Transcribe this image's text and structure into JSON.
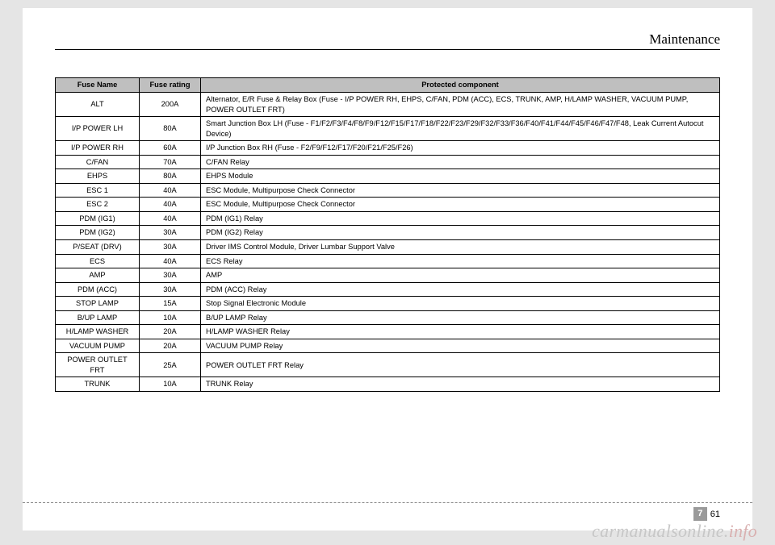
{
  "header": {
    "title": "Maintenance"
  },
  "table": {
    "columns": [
      "Fuse Name",
      "Fuse rating",
      "Protected component"
    ],
    "rows": [
      {
        "h": "tall",
        "c": [
          "ALT",
          "200A",
          "Alternator, E/R Fuse & Relay Box (Fuse - I/P POWER RH, EHPS, C/FAN, PDM (ACC), ECS, TRUNK, AMP, H/LAMP WASHER, VACUUM PUMP, POWER OUTLET FRT)"
        ]
      },
      {
        "h": "tall",
        "c": [
          "I/P POWER LH",
          "80A",
          "Smart Junction Box LH (Fuse - F1/F2/F3/F4/F8/F9/F12/F15/F17/F18/F22/F23/F29/F32/F33/F36/F40/F41/F44/F45/F46/F47/F48, Leak Current Autocut Device)"
        ]
      },
      {
        "h": "short",
        "c": [
          "I/P POWER RH",
          "60A",
          "I/P Junction Box RH (Fuse - F2/F9/F12/F17/F20/F21/F25/F26)"
        ]
      },
      {
        "h": "short",
        "c": [
          "C/FAN",
          "70A",
          "C/FAN Relay"
        ]
      },
      {
        "h": "short",
        "c": [
          "EHPS",
          "80A",
          "EHPS Module"
        ]
      },
      {
        "h": "short",
        "c": [
          "ESC 1",
          "40A",
          "ESC Module, Multipurpose Check Connector"
        ]
      },
      {
        "h": "short",
        "c": [
          "ESC 2",
          "40A",
          "ESC Module, Multipurpose Check Connector"
        ]
      },
      {
        "h": "short",
        "c": [
          "PDM (IG1)",
          "40A",
          "PDM (IG1) Relay"
        ]
      },
      {
        "h": "short",
        "c": [
          "PDM (IG2)",
          "30A",
          "PDM (IG2) Relay"
        ]
      },
      {
        "h": "short",
        "c": [
          "P/SEAT (DRV)",
          "30A",
          "Driver IMS Control Module, Driver Lumbar Support Valve"
        ]
      },
      {
        "h": "short",
        "c": [
          "ECS",
          "40A",
          "ECS Relay"
        ]
      },
      {
        "h": "short",
        "c": [
          "AMP",
          "30A",
          "AMP"
        ]
      },
      {
        "h": "short",
        "c": [
          "PDM (ACC)",
          "30A",
          "PDM (ACC) Relay"
        ]
      },
      {
        "h": "short",
        "c": [
          "STOP LAMP",
          "15A",
          "Stop Signal Electronic Module"
        ]
      },
      {
        "h": "short",
        "c": [
          "B/UP LAMP",
          "10A",
          "B/UP LAMP Relay"
        ]
      },
      {
        "h": "short",
        "c": [
          "H/LAMP WASHER",
          "20A",
          "H/LAMP WASHER Relay"
        ]
      },
      {
        "h": "short",
        "c": [
          "VACUUM PUMP",
          "20A",
          "VACUUM PUMP Relay"
        ]
      },
      {
        "h": "med",
        "c": [
          "POWER OUTLET FRT",
          "25A",
          "POWER OUTLET FRT Relay"
        ]
      },
      {
        "h": "short",
        "c": [
          "TRUNK",
          "10A",
          "TRUNK Relay"
        ]
      }
    ]
  },
  "footer": {
    "page_section": "7",
    "page_number": "61",
    "watermark_a": "carmanualsonline.",
    "watermark_b": "info"
  }
}
